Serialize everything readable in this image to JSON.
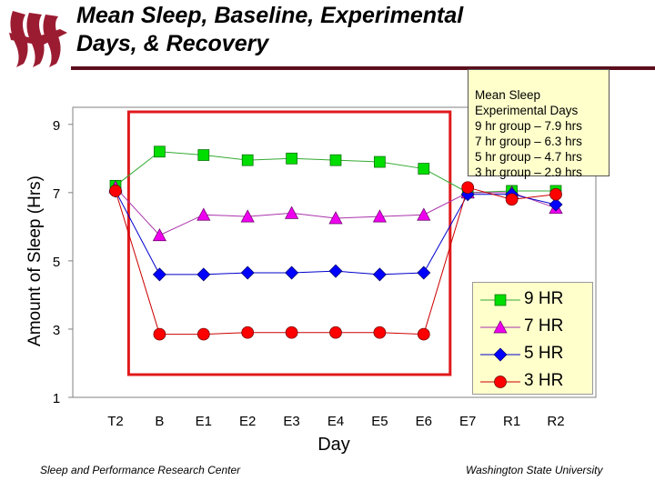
{
  "header": {
    "title": "Mean Sleep, Baseline, Experimental\nDays, & Recovery"
  },
  "note": {
    "lines": [
      "Mean Sleep",
      "Experimental Days",
      "9 hr group – 7.9 hrs",
      "7 hr group – 6.3 hrs",
      "5 hr group – 4.7 hrs",
      "3 hr group – 2.9 hrs"
    ]
  },
  "footer": {
    "left": "Sleep and Performance Research Center",
    "right": "Washington State University"
  },
  "colors": {
    "brand": "#9b1c31",
    "highlight_box": "#e0191c",
    "legend_bg": "#ffffcc"
  },
  "chart_data": {
    "type": "line",
    "categories": [
      "T2",
      "B",
      "E1",
      "E2",
      "E3",
      "E4",
      "E5",
      "E6",
      "E7",
      "R1",
      "R2"
    ],
    "xlabel": "Day",
    "ylabel": "Amount of Sleep (Hrs)",
    "ylim": [
      1,
      9.5
    ],
    "yticks": [
      1,
      3,
      5,
      7,
      9
    ],
    "grid": false,
    "legend_position": "right",
    "highlighted_range": [
      "B",
      "E6"
    ],
    "series": [
      {
        "name": "9 HR",
        "color": "#00dd00",
        "line": "#33aa33",
        "marker": "square",
        "values": [
          7.2,
          8.2,
          8.1,
          7.95,
          8.0,
          7.95,
          7.9,
          7.7,
          7.0,
          7.05,
          7.05
        ]
      },
      {
        "name": "7 HR",
        "color": "#ee00ee",
        "line": "#aa33aa",
        "marker": "triangle",
        "values": [
          7.15,
          5.75,
          6.35,
          6.3,
          6.4,
          6.25,
          6.3,
          6.35,
          7.0,
          7.0,
          6.55
        ]
      },
      {
        "name": "5 HR",
        "color": "#0000ff",
        "line": "#0000cc",
        "marker": "diamond",
        "values": [
          7.05,
          4.6,
          4.6,
          4.65,
          4.65,
          4.7,
          4.6,
          4.65,
          6.95,
          6.95,
          6.65
        ]
      },
      {
        "name": "3 HR",
        "color": "#ff0000",
        "line": "#cc0000",
        "marker": "circle",
        "values": [
          7.05,
          2.85,
          2.85,
          2.9,
          2.9,
          2.9,
          2.9,
          2.85,
          7.15,
          6.8,
          6.95
        ]
      }
    ]
  }
}
